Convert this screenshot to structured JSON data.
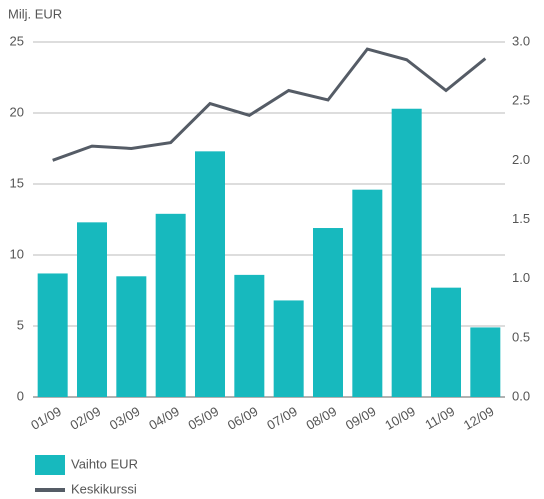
{
  "chart_data": {
    "type": "bar",
    "y_label": "Milj. EUR",
    "categories": [
      "01/09",
      "02/09",
      "03/09",
      "04/09",
      "05/09",
      "06/09",
      "07/09",
      "08/09",
      "09/09",
      "10/09",
      "11/09",
      "12/09"
    ],
    "series": [
      {
        "name": "Vaihto EUR",
        "type": "bar",
        "color": "#17b9be",
        "values": [
          8.7,
          12.3,
          8.5,
          12.9,
          17.3,
          8.6,
          6.8,
          11.9,
          14.6,
          20.3,
          7.7,
          4.9
        ]
      },
      {
        "name": "Keskikurssi",
        "type": "line",
        "axis": "y2",
        "color": "#555c66",
        "values": [
          2.0,
          2.12,
          2.1,
          2.15,
          2.48,
          2.38,
          2.59,
          2.51,
          2.94,
          2.85,
          2.59,
          2.86
        ]
      }
    ],
    "ylim": [
      0,
      25
    ],
    "yticks": [
      0,
      5,
      10,
      15,
      20,
      25
    ],
    "y2lim": [
      0,
      3
    ],
    "y2ticks": [
      {
        "value": 0,
        "label": "0.0"
      },
      0.5,
      {
        "value": 1,
        "label": "1.0"
      },
      1.5,
      {
        "value": 2,
        "label": "2.0"
      },
      2.5,
      {
        "value": 3,
        "label": "3.0"
      }
    ],
    "grid": true,
    "legend": "bottom-left"
  }
}
